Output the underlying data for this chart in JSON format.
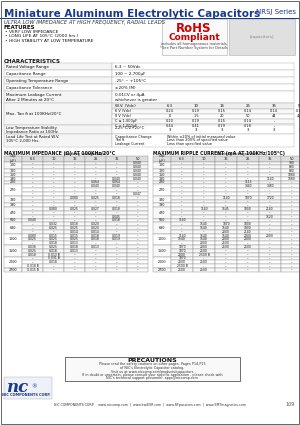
{
  "title": "Miniature Aluminum Electrolytic Capacitors",
  "series": "NRSJ Series",
  "subtitle": "ULTRA LOW IMPEDANCE AT HIGH FREQUENCY, RADIAL LEADS",
  "features": [
    "VERY LOW IMPEDANCE",
    "LONG LIFE AT 105°C (2000 hrs.)",
    "HIGH STABILITY AT LOW TEMPERATURE"
  ],
  "bg_color": "#ffffff",
  "header_blue": "#1a3a8c",
  "imp_title": "MAXIMUM IMPEDANCE (Ω) AT 100KHz/20°C",
  "ripple_title": "MAXIMUM RIPPLE CURRENT (mA AT 100KHz/105°C)",
  "imp_vcols": [
    "6.3",
    "10",
    "16",
    "25",
    "35",
    "50"
  ],
  "rip_vcols": [
    "6.3",
    "10",
    "16",
    "25",
    "35",
    "50"
  ],
  "imp_data": [
    {
      "cap": "100",
      "size": "",
      "rows": [
        [
          "–",
          "–",
          "–",
          "–",
          "–",
          "0.040"
        ],
        [
          "–",
          "–",
          "–",
          "–",
          "–",
          "0.040"
        ]
      ]
    },
    {
      "cap": "120",
      "size": "",
      "rows": [
        [
          "–",
          "–",
          "–",
          "–",
          "–",
          "0.040"
        ]
      ]
    },
    {
      "cap": "150",
      "size": "",
      "rows": [
        [
          "–",
          "–",
          "–",
          "–",
          "–",
          "0.040"
        ]
      ]
    },
    {
      "cap": "180",
      "size": "",
      "rows": [
        [
          "–",
          "–",
          "–",
          "–",
          "0.040",
          "0.040"
        ]
      ]
    },
    {
      "cap": "220",
      "size": "",
      "rows": [
        [
          "–",
          "–",
          "–",
          "0.064",
          "0.064",
          "–"
        ]
      ]
    },
    {
      "cap": "270",
      "size": "",
      "rows": [
        [
          "–",
          "–",
          "–",
          "0.040",
          "0.040",
          "–"
        ],
        [
          "–",
          "–",
          "–",
          "–",
          "–",
          "–"
        ],
        [
          "–",
          "–",
          "–",
          "–",
          "–",
          "0.047"
        ]
      ]
    },
    {
      "cap": "330",
      "size": "",
      "rows": [
        [
          "–",
          "–",
          "0.080",
          "0.025",
          "0.018",
          "–"
        ],
        [
          "–",
          "–",
          "–",
          "–",
          "–",
          "–"
        ]
      ]
    },
    {
      "cap": "390",
      "size": "",
      "rows": [
        [
          "–",
          "–",
          "–",
          "–",
          "–",
          "–"
        ]
      ]
    },
    {
      "cap": "470",
      "size": "",
      "rows": [
        [
          "–",
          "0.080",
          "0.025",
          "0.027",
          "0.018",
          "–"
        ],
        [
          "–",
          "–",
          "–",
          "–",
          "–",
          "–"
        ],
        [
          "–",
          "–",
          "–",
          "–",
          "0.045",
          "–"
        ]
      ]
    },
    {
      "cap": "560",
      "size": "",
      "rows": [
        [
          "0.040",
          "–",
          "–",
          "–",
          "0.018",
          "–"
        ]
      ]
    },
    {
      "cap": "680",
      "size": "",
      "rows": [
        [
          "–",
          "0.032",
          "0.018",
          "0.020",
          "–",
          "–"
        ],
        [
          "–",
          "0.025",
          "0.025",
          "0.020",
          "–",
          "–"
        ],
        [
          "–",
          "–",
          "0.014",
          "0.014",
          "–",
          "–"
        ]
      ]
    },
    {
      "cap": "1000",
      "size": "",
      "rows": [
        [
          "0.080",
          "0.015",
          "0.015",
          "0.018",
          "0.019",
          "–"
        ],
        [
          "0.025",
          "0.025",
          "0.025",
          "0.018",
          "0.019",
          "–"
        ],
        [
          "–",
          "0.018",
          "0.013",
          "–",
          "–",
          "–"
        ]
      ]
    },
    {
      "cap": "1500",
      "size": "",
      "rows": [
        [
          "0.036",
          "0.025",
          "0.018",
          "0.013",
          "–",
          "–"
        ],
        [
          "0.025",
          "0.018",
          "0.013",
          "–",
          "–",
          "–"
        ],
        [
          "0.018",
          "0.013 B",
          "–",
          "–",
          "–",
          "–"
        ]
      ]
    },
    {
      "cap": "2000",
      "size": "",
      "rows": [
        [
          "–",
          "0.031 B",
          "–",
          "–",
          "–",
          "–"
        ],
        [
          "–",
          "0.018",
          "–",
          "–",
          "–",
          "–"
        ],
        [
          "0.018 B",
          "–",
          "–",
          "–",
          "–",
          "–"
        ]
      ]
    },
    {
      "cap": "2700",
      "size": "",
      "rows": [
        [
          "0.015 B",
          "–",
          "–",
          "–",
          "–",
          "–"
        ]
      ]
    }
  ],
  "rip_data": [
    {
      "cap": "100",
      "rows": [
        [
          "–",
          "–",
          "–",
          "–",
          "–",
          "980"
        ],
        [
          "–",
          "–",
          "–",
          "–",
          "–",
          "880"
        ]
      ]
    },
    {
      "cap": "120",
      "rows": [
        [
          "–",
          "–",
          "–",
          "–",
          "–",
          "880"
        ]
      ]
    },
    {
      "cap": "150",
      "rows": [
        [
          "–",
          "–",
          "–",
          "–",
          "–",
          "1080"
        ]
      ]
    },
    {
      "cap": "180",
      "rows": [
        [
          "–",
          "–",
          "–",
          "–",
          "1140",
          "1080"
        ]
      ]
    },
    {
      "cap": "220",
      "rows": [
        [
          "–",
          "–",
          "–",
          "1113",
          "–",
          "–"
        ]
      ]
    },
    {
      "cap": "270",
      "rows": [
        [
          "–",
          "–",
          "–",
          "1440",
          "1480",
          "–"
        ],
        [
          "–",
          "–",
          "–",
          "–",
          "–",
          "–"
        ],
        [
          "–",
          "–",
          "–",
          "–",
          "–",
          "–"
        ]
      ]
    },
    {
      "cap": "330",
      "rows": [
        [
          "–",
          "–",
          "1140",
          "1870",
          "1720",
          "–"
        ],
        [
          "–",
          "–",
          "–",
          "–",
          "–",
          "–"
        ]
      ]
    },
    {
      "cap": "390",
      "rows": [
        [
          "–",
          "–",
          "–",
          "–",
          "–",
          "–"
        ]
      ]
    },
    {
      "cap": "470",
      "rows": [
        [
          "–",
          "1140",
          "1545",
          "1800",
          "2140",
          "–"
        ],
        [
          "–",
          "–",
          "–",
          "–",
          "–",
          "–"
        ],
        [
          "–",
          "–",
          "–",
          "–",
          "1520",
          "–"
        ]
      ]
    },
    {
      "cap": "560",
      "rows": [
        [
          "1140",
          "–",
          "–",
          "–",
          "–",
          "–"
        ]
      ]
    },
    {
      "cap": "680",
      "rows": [
        [
          "–",
          "1540",
          "1870",
          "1800",
          "–",
          "–"
        ],
        [
          "–",
          "1540",
          "1540",
          "1800",
          "–",
          "–"
        ],
        [
          "–",
          "–",
          "2000",
          "2140",
          "–",
          "–"
        ]
      ]
    },
    {
      "cap": "1000",
      "rows": [
        [
          "1140",
          "1540",
          "1540",
          "2000",
          "2000",
          "–"
        ],
        [
          "1540",
          "1540",
          "2000",
          "2000",
          "–",
          "–"
        ],
        [
          "–",
          "2000",
          "2500",
          "–",
          "–",
          "–"
        ]
      ]
    },
    {
      "cap": "1500",
      "rows": [
        [
          "1870",
          "2000",
          "2500",
          "2500",
          "–",
          "–"
        ],
        [
          "1870",
          "2500",
          "–",
          "–",
          "–",
          "–"
        ],
        [
          "2000",
          "2500 B",
          "–",
          "–",
          "–",
          "–"
        ]
      ]
    },
    {
      "cap": "2000",
      "rows": [
        [
          "1870",
          "–",
          "–",
          "–",
          "–",
          "–"
        ],
        [
          "2000",
          "2500",
          "–",
          "–",
          "–",
          "–"
        ],
        [
          "2500 B",
          "–",
          "–",
          "–",
          "–",
          "–"
        ]
      ]
    },
    {
      "cap": "2700",
      "rows": [
        [
          "2500",
          "2500",
          "–",
          "–",
          "–",
          "–"
        ]
      ]
    }
  ],
  "precautions_text": [
    "Please read the safety cautions on other pages. Pages P14-P15",
    "of NIC's Electrolytic Capacitor catalog.",
    "Visit us at www.niccomp.com/products/capacitors",
    "If in doubt or uncertain, please consult your specific application - please check with",
    "NIC's technical support personnel: apps@niccomp.com"
  ],
  "footer": "NIC COMPONENTS CORP.    www.niccomp.com  |  www.kwiESR.com  |  www.RFpassives.com  |  www.SMTmagnetics.com"
}
